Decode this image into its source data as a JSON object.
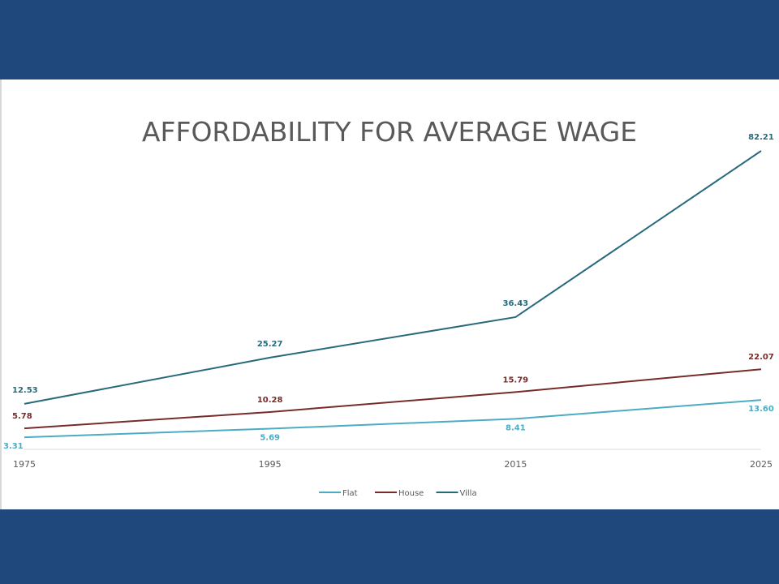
{
  "chart_data": {
    "type": "line",
    "title": "AFFORDABILITY FOR AVERAGE WAGE",
    "xlabel": "",
    "ylabel": "",
    "categories": [
      "1975",
      "1995",
      "2015",
      "2025"
    ],
    "ylim": [
      0,
      82.21
    ],
    "grid": false,
    "legend": "bottom",
    "series": [
      {
        "name": "Flat",
        "color": "#4bacc6",
        "values": [
          3.31,
          5.69,
          8.41,
          13.6
        ],
        "labels": [
          "3.31",
          "5.69",
          "8.41",
          "13.60"
        ]
      },
      {
        "name": "House",
        "color": "#772c2a",
        "values": [
          5.78,
          10.28,
          15.79,
          22.07
        ],
        "labels": [
          "5.78",
          "10.28",
          "15.79",
          "22.07"
        ]
      },
      {
        "name": "Villa",
        "color": "#276a7c",
        "values": [
          12.53,
          25.27,
          36.43,
          82.21
        ],
        "labels": [
          "12.53",
          "25.27",
          "36.43",
          "82.21"
        ]
      }
    ]
  },
  "colors": {
    "banner": "#1f497d",
    "panel": "#ffffff",
    "axis": "#d9d9d9",
    "text": "#595959"
  }
}
